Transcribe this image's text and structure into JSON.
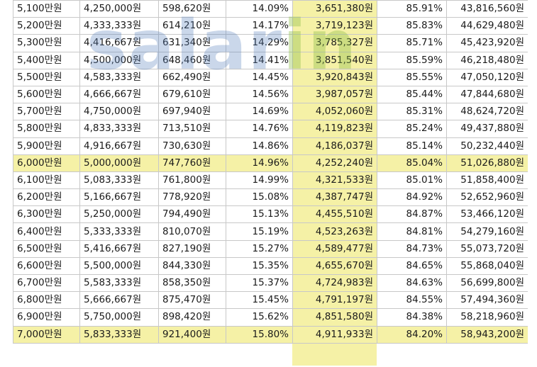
{
  "watermark": {
    "main": "salar",
    "tail": "in"
  },
  "table": {
    "rows": [
      {
        "annual": "5,100만원",
        "monthly": "4,250,000원",
        "deduction": "598,620원",
        "rate": "14.09%",
        "net_monthly": "3,651,380원",
        "net_ratio": "85.91%",
        "net_annual": "43,816,560원",
        "highlight": false
      },
      {
        "annual": "5,200만원",
        "monthly": "4,333,333원",
        "deduction": "614,210원",
        "rate": "14.17%",
        "net_monthly": "3,719,123원",
        "net_ratio": "85.83%",
        "net_annual": "44,629,480원",
        "highlight": false
      },
      {
        "annual": "5,300만원",
        "monthly": "4,416,667원",
        "deduction": "631,340원",
        "rate": "14.29%",
        "net_monthly": "3,785,327원",
        "net_ratio": "85.71%",
        "net_annual": "45,423,920원",
        "highlight": false
      },
      {
        "annual": "5,400만원",
        "monthly": "4,500,000원",
        "deduction": "648,460원",
        "rate": "14.41%",
        "net_monthly": "3,851,540원",
        "net_ratio": "85.59%",
        "net_annual": "46,218,480원",
        "highlight": false
      },
      {
        "annual": "5,500만원",
        "monthly": "4,583,333원",
        "deduction": "662,490원",
        "rate": "14.45%",
        "net_monthly": "3,920,843원",
        "net_ratio": "85.55%",
        "net_annual": "47,050,120원",
        "highlight": false
      },
      {
        "annual": "5,600만원",
        "monthly": "4,666,667원",
        "deduction": "679,610원",
        "rate": "14.56%",
        "net_monthly": "3,987,057원",
        "net_ratio": "85.44%",
        "net_annual": "47,844,680원",
        "highlight": false
      },
      {
        "annual": "5,700만원",
        "monthly": "4,750,000원",
        "deduction": "697,940원",
        "rate": "14.69%",
        "net_monthly": "4,052,060원",
        "net_ratio": "85.31%",
        "net_annual": "48,624,720원",
        "highlight": false
      },
      {
        "annual": "5,800만원",
        "monthly": "4,833,333원",
        "deduction": "713,510원",
        "rate": "14.76%",
        "net_monthly": "4,119,823원",
        "net_ratio": "85.24%",
        "net_annual": "49,437,880원",
        "highlight": false
      },
      {
        "annual": "5,900만원",
        "monthly": "4,916,667원",
        "deduction": "730,630원",
        "rate": "14.86%",
        "net_monthly": "4,186,037원",
        "net_ratio": "85.14%",
        "net_annual": "50,232,440원",
        "highlight": false
      },
      {
        "annual": "6,000만원",
        "monthly": "5,000,000원",
        "deduction": "747,760원",
        "rate": "14.96%",
        "net_monthly": "4,252,240원",
        "net_ratio": "85.04%",
        "net_annual": "51,026,880원",
        "highlight": true
      },
      {
        "annual": "6,100만원",
        "monthly": "5,083,333원",
        "deduction": "761,800원",
        "rate": "14.99%",
        "net_monthly": "4,321,533원",
        "net_ratio": "85.01%",
        "net_annual": "51,858,400원",
        "highlight": false
      },
      {
        "annual": "6,200만원",
        "monthly": "5,166,667원",
        "deduction": "778,920원",
        "rate": "15.08%",
        "net_monthly": "4,387,747원",
        "net_ratio": "84.92%",
        "net_annual": "52,652,960원",
        "highlight": false
      },
      {
        "annual": "6,300만원",
        "monthly": "5,250,000원",
        "deduction": "794,490원",
        "rate": "15.13%",
        "net_monthly": "4,455,510원",
        "net_ratio": "84.87%",
        "net_annual": "53,466,120원",
        "highlight": false
      },
      {
        "annual": "6,400만원",
        "monthly": "5,333,333원",
        "deduction": "810,070원",
        "rate": "15.19%",
        "net_monthly": "4,523,263원",
        "net_ratio": "84.81%",
        "net_annual": "54,279,160원",
        "highlight": false
      },
      {
        "annual": "6,500만원",
        "monthly": "5,416,667원",
        "deduction": "827,190원",
        "rate": "15.27%",
        "net_monthly": "4,589,477원",
        "net_ratio": "84.73%",
        "net_annual": "55,073,720원",
        "highlight": false
      },
      {
        "annual": "6,600만원",
        "monthly": "5,500,000원",
        "deduction": "844,330원",
        "rate": "15.35%",
        "net_monthly": "4,655,670원",
        "net_ratio": "84.65%",
        "net_annual": "55,868,040원",
        "highlight": false
      },
      {
        "annual": "6,700만원",
        "monthly": "5,583,333원",
        "deduction": "858,350원",
        "rate": "15.37%",
        "net_monthly": "4,724,983원",
        "net_ratio": "84.63%",
        "net_annual": "56,699,800원",
        "highlight": false
      },
      {
        "annual": "6,800만원",
        "monthly": "5,666,667원",
        "deduction": "875,470원",
        "rate": "15.45%",
        "net_monthly": "4,791,197원",
        "net_ratio": "84.55%",
        "net_annual": "57,494,360원",
        "highlight": false
      },
      {
        "annual": "6,900만원",
        "monthly": "5,750,000원",
        "deduction": "898,420원",
        "rate": "15.62%",
        "net_monthly": "4,851,580원",
        "net_ratio": "84.38%",
        "net_annual": "58,218,960원",
        "highlight": false
      },
      {
        "annual": "7,000만원",
        "monthly": "5,833,333원",
        "deduction": "921,400원",
        "rate": "15.80%",
        "net_monthly": "4,911,933원",
        "net_ratio": "84.20%",
        "net_annual": "58,943,200원",
        "highlight": true
      }
    ]
  },
  "colors": {
    "highlight": "#f5f1a6",
    "grid": "#c8c8c8",
    "text": "#1a1a1a",
    "watermark_main": "#5a82be",
    "watermark_tail": "#8cbe46"
  }
}
